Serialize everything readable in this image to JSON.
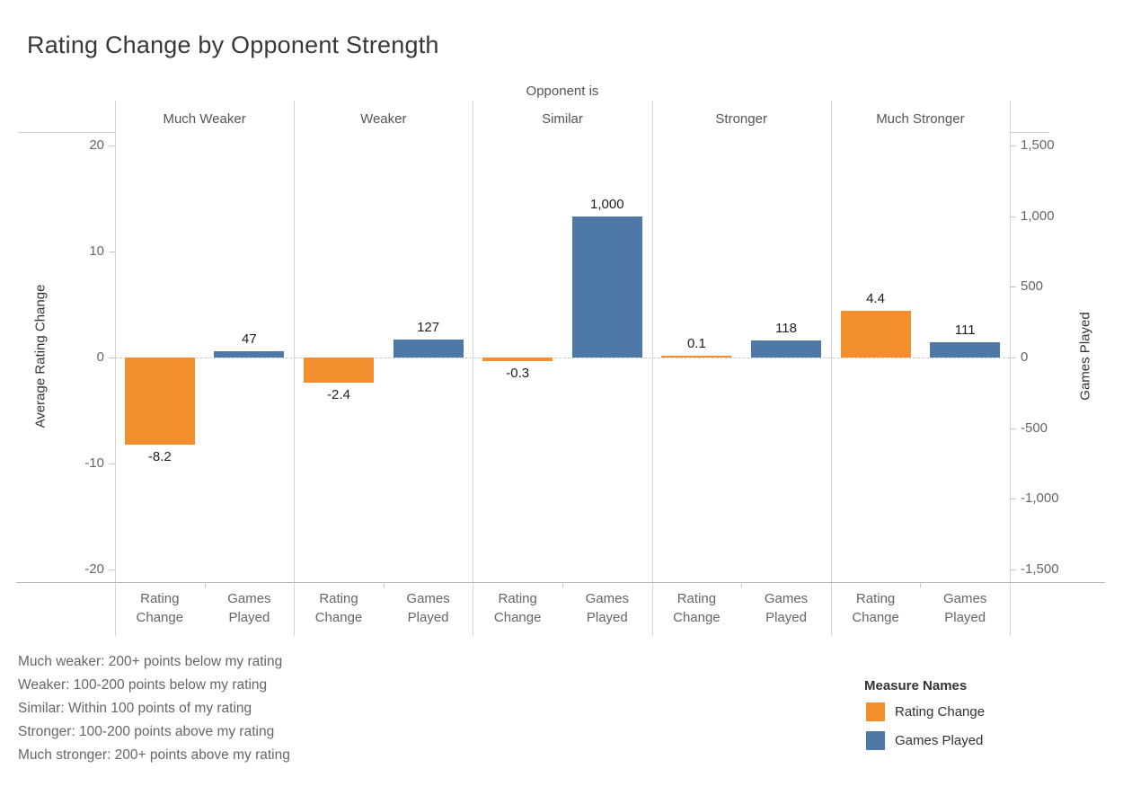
{
  "title": "Rating Change by Opponent Strength",
  "facet_header": "Opponent is",
  "axes": {
    "left": {
      "title": "Average Rating Change",
      "ticks": [
        20,
        10,
        0,
        -10,
        -20
      ],
      "range": [
        -21.2,
        21.2
      ]
    },
    "right": {
      "title": "Games Played",
      "ticks": [
        1500,
        1000,
        500,
        0,
        -500,
        -1000,
        -1500
      ],
      "range": [
        -1590,
        1590
      ]
    }
  },
  "legend": {
    "title": "Measure Names",
    "items": [
      {
        "label": "Rating Change",
        "color": "#f28e2b"
      },
      {
        "label": "Games Played",
        "color": "#4e79a7"
      }
    ]
  },
  "footnotes": [
    "Much weaker: 200+ points below my rating",
    "Weaker: 100-200 points below my rating",
    "Similar: Within 100 points of my rating",
    "Stronger: 100-200 points above my rating",
    "Much stronger: 200+ points above my rating"
  ],
  "colors": {
    "rating_change": "#f28e2b",
    "games_played": "#4e79a7"
  },
  "chart_data": {
    "type": "bar",
    "title": "Rating Change by Opponent Strength",
    "facet_label": "Opponent is",
    "categories": [
      "Much Weaker",
      "Weaker",
      "Similar",
      "Stronger",
      "Much Stronger"
    ],
    "x_tick_labels": [
      "Rating Change",
      "Games Played"
    ],
    "series": [
      {
        "name": "Rating Change",
        "axis": "left",
        "color": "#f28e2b",
        "values": [
          -8.2,
          -2.4,
          -0.3,
          0.1,
          4.4
        ],
        "labels": [
          "-8.2",
          "-2.4",
          "-0.3",
          "0.1",
          "4.4"
        ]
      },
      {
        "name": "Games Played",
        "axis": "right",
        "color": "#4e79a7",
        "values": [
          47,
          127,
          1000,
          118,
          111
        ],
        "labels": [
          "47",
          "127",
          "1,000",
          "118",
          "111"
        ]
      }
    ],
    "left_ylabel": "Average Rating Change",
    "right_ylabel": "Games Played",
    "left_ylim": [
      -21.2,
      21.2
    ],
    "right_ylim": [
      -1590,
      1590
    ],
    "grid": "zero-dashed-line-only",
    "legend_position": "bottom-right"
  }
}
